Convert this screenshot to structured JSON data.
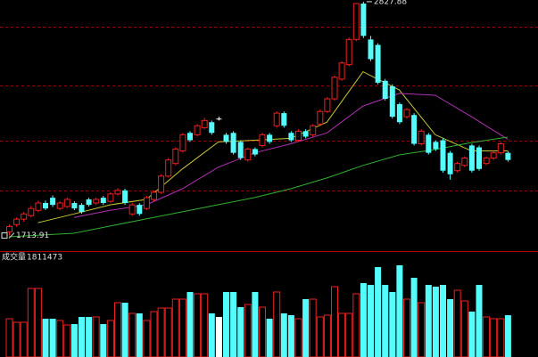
{
  "chart_data": [
    {
      "type": "candlestick",
      "open": [
        1732,
        1766,
        1792,
        1809,
        1834,
        1869,
        1894,
        1843,
        1852,
        1869,
        1860,
        1886,
        1869,
        1894,
        1877,
        1912,
        1929,
        1817,
        1860,
        1843,
        1886,
        1920,
        1997,
        2057,
        2117,
        2203,
        2194,
        2228,
        2254,
        2271,
        2194,
        2203,
        2160,
        2074,
        2126,
        2143,
        2194,
        2237,
        2297,
        2203,
        2168,
        2211,
        2194,
        2245,
        2305,
        2365,
        2459,
        2528,
        2648,
        2819,
        2648,
        2622,
        2451,
        2425,
        2340,
        2280,
        2288,
        2151,
        2194,
        2160,
        2168,
        2108,
        2023,
        2048,
        2143,
        2134,
        2057,
        2083,
        2108,
        2108
      ],
      "close": [
        1757,
        1792,
        1817,
        1843,
        1869,
        1843,
        1860,
        1869,
        1886,
        1843,
        1826,
        1860,
        1886,
        1869,
        1912,
        1929,
        1869,
        1860,
        1817,
        1894,
        1920,
        1997,
        2074,
        2126,
        2194,
        2168,
        2237,
        2262,
        2203,
        2271,
        2160,
        2108,
        2083,
        2126,
        2100,
        2194,
        2160,
        2297,
        2237,
        2168,
        2211,
        2185,
        2237,
        2305,
        2365,
        2468,
        2536,
        2648,
        2819,
        2665,
        2554,
        2442,
        2365,
        2280,
        2254,
        2314,
        2151,
        2211,
        2108,
        2126,
        2023,
        2006,
        2057,
        2083,
        2023,
        2031,
        2083,
        2108,
        2151,
        2074
      ],
      "high": [
        1766,
        1800,
        1826,
        1855,
        1880,
        1880,
        1905,
        1878,
        1895,
        1877,
        1868,
        1894,
        1895,
        1903,
        1920,
        1940,
        1937,
        1870,
        1868,
        1903,
        1929,
        2006,
        2083,
        2134,
        2203,
        2211,
        2245,
        2275,
        2262,
        2280,
        2203,
        2211,
        2168,
        2134,
        2134,
        2203,
        2203,
        2305,
        2305,
        2211,
        2220,
        2220,
        2245,
        2314,
        2374,
        2477,
        2545,
        2657,
        2822,
        2827.88,
        2665,
        2630,
        2460,
        2434,
        2348,
        2322,
        2297,
        2220,
        2203,
        2168,
        2177,
        2117,
        2066,
        2091,
        2151,
        2143,
        2091,
        2117,
        2160,
        2117
      ],
      "low": [
        1713.91,
        1755,
        1780,
        1800,
        1825,
        1835,
        1850,
        1835,
        1845,
        1835,
        1818,
        1852,
        1860,
        1860,
        1870,
        1905,
        1860,
        1808,
        1808,
        1835,
        1877,
        1912,
        1990,
        2048,
        2108,
        2160,
        2185,
        2220,
        2194,
        2262,
        2151,
        2100,
        2074,
        2066,
        2091,
        2134,
        2151,
        2228,
        2228,
        2160,
        2160,
        2177,
        2185,
        2237,
        2297,
        2357,
        2451,
        2520,
        2640,
        2655,
        2545,
        2434,
        2357,
        2271,
        2245,
        2271,
        2143,
        2143,
        2100,
        2117,
        2014,
        1980,
        2014,
        2040,
        2014,
        2023,
        2048,
        2074,
        2100,
        2066
      ],
      "up_color": "#ee2020",
      "down_color": "#54fcfc",
      "flat_color": "#ffffff",
      "ylim": [
        1640,
        2836
      ],
      "lines": [
        {
          "color": "#c8c832",
          "x": [
            4,
            9,
            14,
            19,
            24,
            29,
            34,
            39,
            44,
            49,
            54,
            59,
            64,
            69
          ],
          "values": [
            1775,
            1817,
            1860,
            1886,
            2031,
            2160,
            2168,
            2177,
            2254,
            2494,
            2408,
            2194,
            2117,
            2117
          ]
        },
        {
          "color": "#b030b0",
          "x": [
            9,
            14,
            19,
            24,
            29,
            34,
            39,
            44,
            49,
            54,
            59,
            64,
            69
          ],
          "values": [
            1800,
            1834,
            1860,
            1937,
            2040,
            2108,
            2151,
            2203,
            2331,
            2391,
            2382,
            2280,
            2173
          ]
        },
        {
          "color": "#30b030",
          "x": [
            0,
            9,
            14,
            19,
            24,
            29,
            34,
            39,
            44,
            49,
            54,
            59,
            64,
            69
          ],
          "values": [
            1708,
            1725,
            1759,
            1793,
            1827,
            1861,
            1895,
            1937,
            1988,
            2048,
            2098,
            2124,
            2157,
            2183
          ]
        }
      ]
    },
    {
      "type": "bar",
      "title": "成交量",
      "values": [
        1659000,
        1504000,
        1504000,
        2970000,
        2970000,
        1659000,
        1659000,
        1581000,
        1389000,
        1427000,
        1736000,
        1736000,
        1736000,
        1427000,
        1581000,
        2353000,
        2353000,
        1890000,
        1890000,
        1581000,
        1967000,
        2121000,
        2121000,
        2507000,
        2507000,
        2816000,
        2739000,
        2739000,
        1890000,
        1736000,
        2816000,
        2816000,
        2160000,
        2276000,
        2816000,
        2160000,
        1659000,
        2816000,
        1890000,
        1813000,
        1659000,
        2507000,
        2507000,
        1736000,
        1813000,
        3047000,
        1890000,
        1890000,
        2739000,
        3201000,
        3124000,
        3896000,
        3124000,
        2816000,
        3973000,
        2507000,
        3433000,
        2353000,
        3124000,
        3047000,
        3124000,
        2507000,
        2893000,
        2430000,
        1967000,
        3124000,
        1736000,
        1659000,
        1659000,
        1811473
      ],
      "ylim": [
        0,
        4050000
      ]
    }
  ]
}
